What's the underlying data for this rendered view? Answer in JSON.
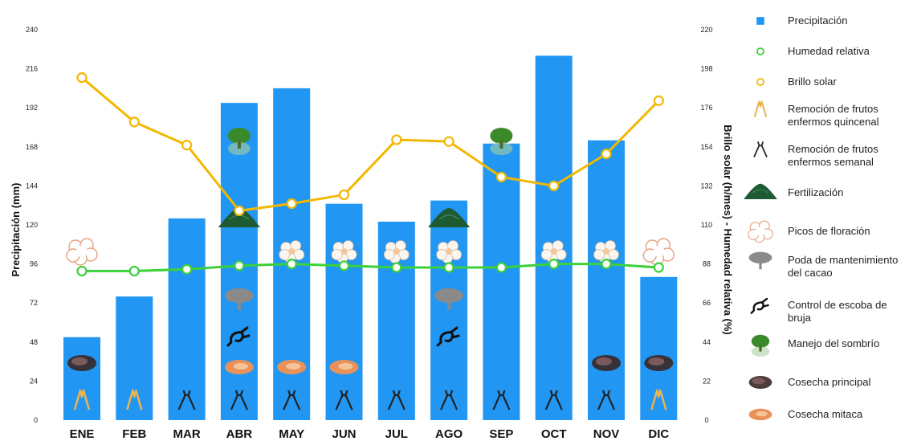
{
  "chart_data": {
    "type": "bar",
    "categories": [
      "ENE",
      "FEB",
      "MAR",
      "ABR",
      "MAY",
      "JUN",
      "JUL",
      "AGO",
      "SEP",
      "OCT",
      "NOV",
      "DIC"
    ],
    "series": [
      {
        "name": "Precipitación",
        "type": "bar",
        "axis": "left",
        "color": "#2196f3",
        "values": [
          51,
          76,
          124,
          195,
          204,
          133,
          122,
          135,
          170,
          224,
          172,
          88
        ]
      },
      {
        "name": "Humedad relativa",
        "type": "line",
        "axis": "right",
        "color": "#3bd13b",
        "values": [
          84,
          84,
          85,
          87,
          88,
          87,
          86,
          86,
          86,
          88,
          88,
          86
        ]
      },
      {
        "name": "Brillo solar",
        "type": "line",
        "axis": "right",
        "color": "#f2b800",
        "values": [
          193,
          168,
          155,
          118,
          122,
          127,
          158,
          157,
          137,
          132,
          150,
          180
        ]
      }
    ],
    "ylabel_left": "Precipitación (mm)",
    "ylabel_right": "Brillo solar (h/mes) - Humedad relativa (%)",
    "ylim_left": [
      0,
      240
    ],
    "ylim_right": [
      0,
      220
    ],
    "yticks_left": [
      "0",
      "24",
      "48",
      "72",
      "96",
      "120",
      "144",
      "168",
      "192",
      "216",
      "240"
    ],
    "yticks_right": [
      "0",
      "22",
      "44",
      "66",
      "88",
      "110",
      "132",
      "154",
      "176",
      "198",
      "220"
    ],
    "grid": false,
    "legend_position": "right",
    "activities": {
      "remocion_quincenal": [
        "ENE",
        "FEB",
        "DIC"
      ],
      "remocion_semanal": [
        "MAR",
        "ABR",
        "MAY",
        "JUN",
        "JUL",
        "AGO",
        "SEP",
        "OCT",
        "NOV"
      ],
      "fertilizacion": [
        "ABR",
        "AGO"
      ],
      "picos_floracion": [
        "ENE",
        "DIC"
      ],
      "flores": [
        "MAY",
        "JUN",
        "JUL",
        "AGO",
        "OCT",
        "NOV"
      ],
      "poda": [
        "ABR",
        "AGO"
      ],
      "control_escoba": [
        "ABR",
        "AGO"
      ],
      "manejo_sombrio": [
        "ABR",
        "SEP"
      ],
      "cosecha_principal": [
        "ENE",
        "NOV",
        "DIC"
      ],
      "cosecha_mitaca": [
        "ABR",
        "MAY",
        "JUN"
      ]
    }
  },
  "legend": [
    {
      "label": "Precipitación",
      "icon": "blue-square-icon",
      "color": "#2196f3"
    },
    {
      "label": "Humedad relativa",
      "icon": "green-circle-icon",
      "color": "#3bd13b"
    },
    {
      "label": "Brillo solar",
      "icon": "orange-circle-icon",
      "color": "#f2b800"
    },
    {
      "label": "Remoción  de frutos enfermos quincenal",
      "icon": "pruner-open-icon",
      "color": "#e8b450"
    },
    {
      "label": "Remoción de frutos enfermos semanal",
      "icon": "pruner-icon",
      "color": "#222222"
    },
    {
      "label": "Fertilización",
      "icon": "fertilizer-pile-icon",
      "color": "#1e5a32"
    },
    {
      "label": "Picos de floración",
      "icon": "flower-outline-icon",
      "color": "#e8a080"
    },
    {
      "label": "Poda de mantenimiento del cacao",
      "icon": "tree-grey-icon",
      "color": "#888888"
    },
    {
      "label": "Control de escoba de bruja",
      "icon": "witch-broom-icon",
      "color": "#111111"
    },
    {
      "label": "Manejo del sombrío",
      "icon": "tree-green-icon",
      "color": "#3a8a2a"
    },
    {
      "label": "Cosecha principal",
      "icon": "harvest-dark-icon",
      "color": "#4a2a2a"
    },
    {
      "label": "Cosecha mitaca",
      "icon": "harvest-orange-icon",
      "color": "#e08a40"
    }
  ]
}
